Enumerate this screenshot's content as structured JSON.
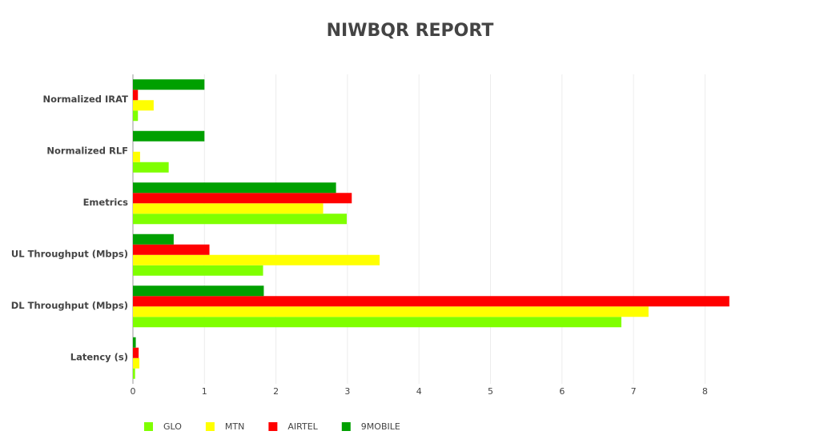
{
  "chart_data": {
    "type": "hbar",
    "title": "NIWBQR REPORT",
    "categories": [
      "Normalized IRAT",
      "Normalized RLF",
      "Emetrics",
      "UL Throughput (Mbps)",
      "DL Throughput (Mbps)",
      "Latency (s)"
    ],
    "series": [
      {
        "name": "GLO",
        "color": "#7fff00",
        "values": [
          0.07,
          0.5,
          2.99,
          1.82,
          6.83,
          0.03
        ]
      },
      {
        "name": "MTN",
        "color": "#ffff00",
        "values": [
          0.29,
          0.1,
          2.66,
          3.45,
          7.21,
          0.09
        ]
      },
      {
        "name": "AIRTEL",
        "color": "#ff0000",
        "values": [
          0.07,
          0,
          3.06,
          1.07,
          8.34,
          0.08
        ]
      },
      {
        "name": "9MOBILE",
        "color": "#00a000",
        "values": [
          1,
          1,
          2.84,
          0.57,
          1.83,
          0.04
        ]
      }
    ],
    "xlim": [
      0,
      8.6
    ],
    "xticks": [
      0,
      1,
      2,
      3,
      4,
      5,
      6,
      7,
      8
    ],
    "grid": true
  }
}
